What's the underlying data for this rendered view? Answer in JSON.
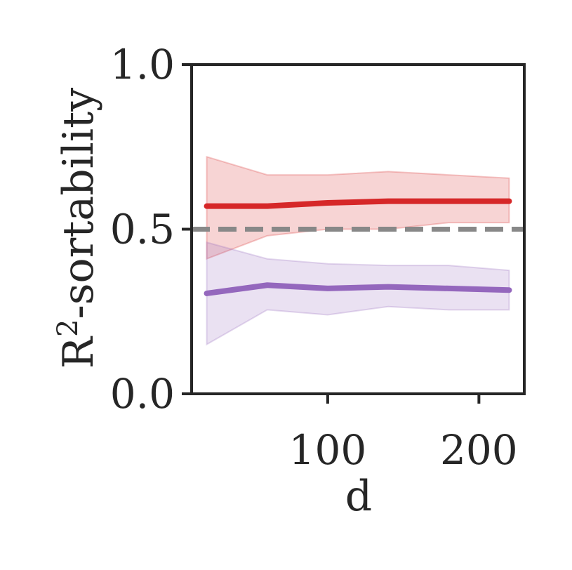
{
  "chart_data": {
    "type": "line",
    "xlabel": "d",
    "ylabel_main": "R",
    "ylabel_sup": "2",
    "ylabel_rest": "-sortability",
    "xlim": [
      10,
      230
    ],
    "ylim": [
      0,
      1
    ],
    "x_ticks": [
      100,
      200
    ],
    "x_tick_labels": [
      "100",
      "200"
    ],
    "y_ticks": [
      0,
      0.5,
      1
    ],
    "y_tick_labels": [
      "0.0",
      "0.5",
      "1.0"
    ],
    "x": [
      20,
      60,
      100,
      140,
      180,
      220
    ],
    "series": [
      {
        "color": "#d62728",
        "values": [
          0.57,
          0.57,
          0.58,
          0.585,
          0.585,
          0.585
        ],
        "lower": [
          0.41,
          0.48,
          0.5,
          0.5,
          0.52,
          0.52
        ],
        "upper": [
          0.72,
          0.665,
          0.665,
          0.675,
          0.665,
          0.655
        ]
      },
      {
        "color": "#9467bd",
        "values": [
          0.305,
          0.33,
          0.32,
          0.325,
          0.32,
          0.315
        ],
        "lower": [
          0.15,
          0.255,
          0.24,
          0.265,
          0.255,
          0.255
        ],
        "upper": [
          0.46,
          0.41,
          0.395,
          0.39,
          0.39,
          0.375
        ]
      }
    ],
    "reference_line": {
      "y": 0.5,
      "style": "dashed",
      "color": "#888888"
    },
    "grid": false,
    "legend": "none"
  }
}
